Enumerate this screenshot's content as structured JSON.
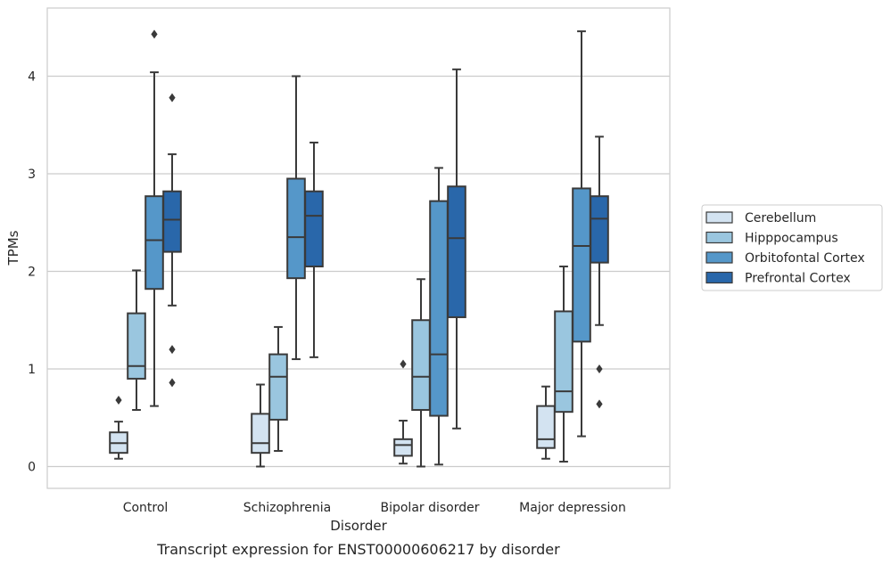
{
  "chart_data": {
    "type": "box",
    "caption": "Transcript expression for ENST00000606217 by disorder",
    "xlabel": "Disorder",
    "ylabel": "TPMs",
    "ylim": [
      -0.22,
      4.7
    ],
    "yticks": [
      0,
      1,
      2,
      3,
      4
    ],
    "grid": "horizontal",
    "legend_position": "right",
    "categories": [
      "Control",
      "Schizophrenia",
      "Bipolar disorder",
      "Major depression"
    ],
    "series": [
      {
        "name": "Cerebellum",
        "color": "#d3e3f1",
        "boxes": [
          {
            "whisker_low": 0.08,
            "q1": 0.14,
            "median": 0.24,
            "q3": 0.35,
            "whisker_high": 0.46,
            "outliers": [
              0.68
            ]
          },
          {
            "whisker_low": 0.0,
            "q1": 0.14,
            "median": 0.24,
            "q3": 0.54,
            "whisker_high": 0.84,
            "outliers": []
          },
          {
            "whisker_low": 0.03,
            "q1": 0.11,
            "median": 0.22,
            "q3": 0.28,
            "whisker_high": 0.47,
            "outliers": [
              1.05
            ]
          },
          {
            "whisker_low": 0.08,
            "q1": 0.19,
            "median": 0.28,
            "q3": 0.62,
            "whisker_high": 0.82,
            "outliers": []
          }
        ]
      },
      {
        "name": "Hipppocampus",
        "color": "#9ac6df",
        "boxes": [
          {
            "whisker_low": 0.58,
            "q1": 0.9,
            "median": 1.03,
            "q3": 1.57,
            "whisker_high": 2.01,
            "outliers": []
          },
          {
            "whisker_low": 0.16,
            "q1": 0.48,
            "median": 0.92,
            "q3": 1.15,
            "whisker_high": 1.43,
            "outliers": []
          },
          {
            "whisker_low": 0.0,
            "q1": 0.58,
            "median": 0.92,
            "q3": 1.5,
            "whisker_high": 1.92,
            "outliers": []
          },
          {
            "whisker_low": 0.05,
            "q1": 0.56,
            "median": 0.77,
            "q3": 1.59,
            "whisker_high": 2.05,
            "outliers": []
          }
        ]
      },
      {
        "name": "Orbitofontal Cortex",
        "color": "#5597c9",
        "boxes": [
          {
            "whisker_low": 0.62,
            "q1": 1.82,
            "median": 2.32,
            "q3": 2.77,
            "whisker_high": 4.04,
            "outliers": [
              4.43
            ]
          },
          {
            "whisker_low": 1.1,
            "q1": 1.93,
            "median": 2.35,
            "q3": 2.95,
            "whisker_high": 4.0,
            "outliers": []
          },
          {
            "whisker_low": 0.02,
            "q1": 0.52,
            "median": 1.15,
            "q3": 2.72,
            "whisker_high": 3.06,
            "outliers": []
          },
          {
            "whisker_low": 0.31,
            "q1": 1.28,
            "median": 2.26,
            "q3": 2.85,
            "whisker_high": 4.46,
            "outliers": []
          }
        ]
      },
      {
        "name": "Prefrontal Cortex",
        "color": "#2967aa",
        "boxes": [
          {
            "whisker_low": 1.65,
            "q1": 2.2,
            "median": 2.53,
            "q3": 2.82,
            "whisker_high": 3.2,
            "outliers": [
              3.78,
              1.2,
              0.86
            ]
          },
          {
            "whisker_low": 1.12,
            "q1": 2.05,
            "median": 2.57,
            "q3": 2.82,
            "whisker_high": 3.32,
            "outliers": []
          },
          {
            "whisker_low": 0.39,
            "q1": 1.53,
            "median": 2.34,
            "q3": 2.87,
            "whisker_high": 4.07,
            "outliers": []
          },
          {
            "whisker_low": 1.45,
            "q1": 2.09,
            "median": 2.54,
            "q3": 2.77,
            "whisker_high": 3.38,
            "outliers": [
              1.0,
              0.64
            ]
          }
        ]
      }
    ]
  }
}
